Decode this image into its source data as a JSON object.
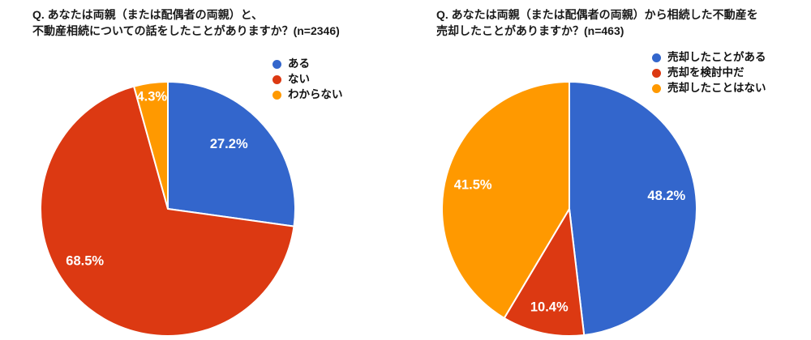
{
  "page": {
    "background": "#ffffff",
    "text_color": "#1a1a1a",
    "slice_label_color": "#ffffff"
  },
  "chart_data": [
    {
      "type": "pie",
      "title": "Q. あなたは両親（または配偶者の両親）と、不動産相続についての話をしたことがありますか？(n=2346)",
      "title_line1": "Q. あなたは両親（または配偶者の両親）と、",
      "title_line2": "不動産相続についての話をしたことがありますか？(n=2346)",
      "n": 2346,
      "labels": [
        "ある",
        "ない",
        "わからない"
      ],
      "values": [
        27.2,
        68.5,
        4.3
      ],
      "pct_labels": [
        "27.2%",
        "68.5%",
        "4.3%"
      ],
      "colors": [
        "#3366CC",
        "#DC3912",
        "#FF9900"
      ],
      "start_angle": "top",
      "direction": "clockwise",
      "legend_position": "top-right",
      "label_color": "#ffffff",
      "label_angles_deg": [
        43.2,
        237.8,
        351.9
      ],
      "label_radius_frac": [
        0.7,
        0.77,
        0.89
      ]
    },
    {
      "type": "pie",
      "title": "Q. あなたは両親（または配偶者の両親）から相続した不動産を売却したことがありますか？(n=463)",
      "title_line1": "Q. あなたは両親（または配偶者の両親）から相続した不動産を",
      "title_line2": "売却したことがありますか？(n=463)",
      "n": 463,
      "labels": [
        "売却したことがある",
        "売却を検討中だ",
        "売却したことはない"
      ],
      "values": [
        48.2,
        10.4,
        41.5
      ],
      "pct_labels": [
        "48.2%",
        "10.4%",
        "41.5%"
      ],
      "colors": [
        "#3366CC",
        "#DC3912",
        "#FF9900"
      ],
      "start_angle": "top",
      "direction": "clockwise",
      "legend_position": "top-right",
      "label_color": "#ffffff",
      "label_angles_deg": [
        82.4,
        191.5,
        284.0
      ],
      "label_radius_frac": [
        0.77,
        0.79,
        0.78
      ]
    }
  ]
}
